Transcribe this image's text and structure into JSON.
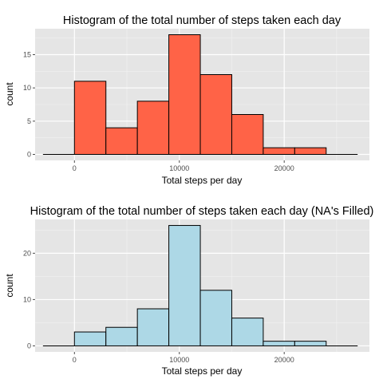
{
  "chart_data": [
    {
      "type": "bar",
      "title": "Histogram of the total number of steps taken each day",
      "xlabel": "Total steps per day",
      "ylabel": "count",
      "fill": "#ff6347",
      "xlim": [
        -3750,
        28125
      ],
      "ylim": [
        -0.9,
        18.9
      ],
      "xticks": [
        0,
        10000,
        20000
      ],
      "xtick_labels": [
        "0",
        "10000",
        "20000"
      ],
      "yticks": [
        0,
        5,
        10,
        15
      ],
      "ytick_labels": [
        "0",
        "5",
        "10",
        "15"
      ],
      "grid": true,
      "bin_width": 3000,
      "bins": [
        {
          "x0": -3000,
          "x1": 0,
          "value": 0
        },
        {
          "x0": 0,
          "x1": 3000,
          "value": 11
        },
        {
          "x0": 3000,
          "x1": 6000,
          "value": 4
        },
        {
          "x0": 6000,
          "x1": 9000,
          "value": 8
        },
        {
          "x0": 9000,
          "x1": 12000,
          "value": 18
        },
        {
          "x0": 12000,
          "x1": 15000,
          "value": 12
        },
        {
          "x0": 15000,
          "x1": 18000,
          "value": 6
        },
        {
          "x0": 18000,
          "x1": 21000,
          "value": 1
        },
        {
          "x0": 21000,
          "x1": 24000,
          "value": 1
        },
        {
          "x0": 24000,
          "x1": 27000,
          "value": 0
        }
      ]
    },
    {
      "type": "bar",
      "title": "Histogram of the total number of steps taken each day (NA's Filled)",
      "xlabel": "Total steps per day",
      "ylabel": "count",
      "fill": "#add8e6",
      "xlim": [
        -3750,
        28125
      ],
      "ylim": [
        -1.3,
        27.3
      ],
      "xticks": [
        0,
        10000,
        20000
      ],
      "xtick_labels": [
        "0",
        "10000",
        "20000"
      ],
      "yticks": [
        0,
        10,
        20
      ],
      "ytick_labels": [
        "0",
        "10",
        "20"
      ],
      "grid": true,
      "bin_width": 3000,
      "bins": [
        {
          "x0": -3000,
          "x1": 0,
          "value": 0
        },
        {
          "x0": 0,
          "x1": 3000,
          "value": 3
        },
        {
          "x0": 3000,
          "x1": 6000,
          "value": 4
        },
        {
          "x0": 6000,
          "x1": 9000,
          "value": 8
        },
        {
          "x0": 9000,
          "x1": 12000,
          "value": 26
        },
        {
          "x0": 12000,
          "x1": 15000,
          "value": 12
        },
        {
          "x0": 15000,
          "x1": 18000,
          "value": 6
        },
        {
          "x0": 18000,
          "x1": 21000,
          "value": 1
        },
        {
          "x0": 21000,
          "x1": 24000,
          "value": 1
        },
        {
          "x0": 24000,
          "x1": 27000,
          "value": 0
        }
      ]
    }
  ]
}
